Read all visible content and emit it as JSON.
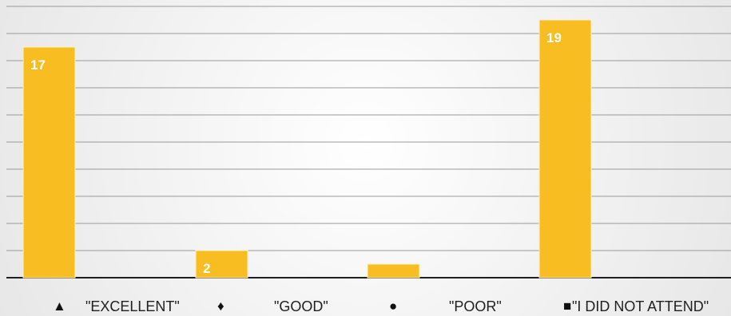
{
  "chart_data": {
    "type": "bar",
    "categories": [
      "\"EXCELLENT\"",
      "\"GOOD\"",
      "\"POOR\"",
      "\"I DID NOT ATTEND\""
    ],
    "values": [
      17,
      2,
      1,
      19
    ],
    "data_labels": [
      "17",
      "2",
      "",
      "19"
    ],
    "ylim": [
      0,
      20
    ],
    "grid": true,
    "legend": {
      "items": [
        {
          "symbol": "▲",
          "label": "\"EXCELLENT\""
        },
        {
          "symbol": "♦",
          "label": "\"GOOD\""
        },
        {
          "symbol": "●",
          "label": "\"POOR\""
        },
        {
          "symbol": "■",
          "label": "\"I DID NOT ATTEND\""
        }
      ]
    },
    "colors": {
      "bar": "#f7bd21",
      "bar_edge": "#fff1c4",
      "grid": "#9a9a9a",
      "axis": "#1f1f1f",
      "data_label": "#ffffff"
    }
  }
}
